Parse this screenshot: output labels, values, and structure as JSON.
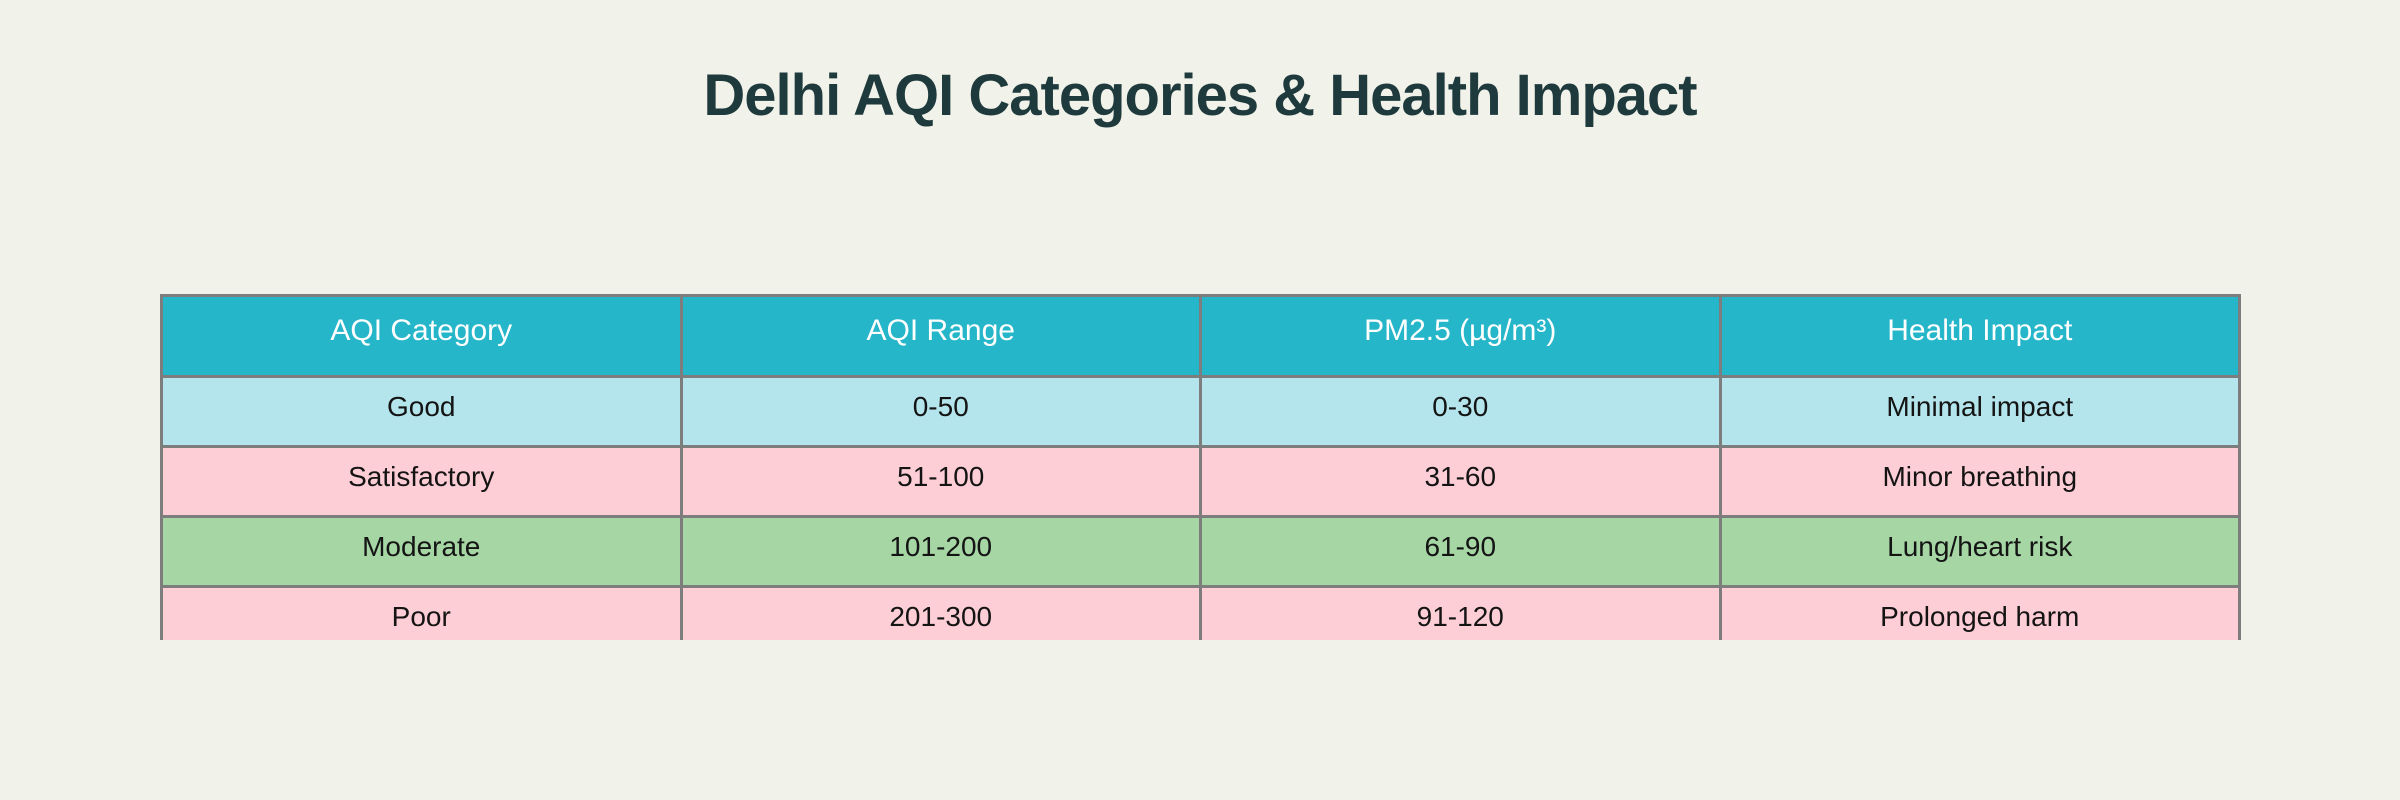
{
  "page": {
    "background": "#f1f2ea",
    "title": "Delhi AQI Categories & Health Impact",
    "title_color": "#1e3a3c"
  },
  "table": {
    "border_color": "#7d7d7d",
    "header": {
      "background": "#26b6c9",
      "text_color": "#ffffff",
      "columns": [
        "AQI Category",
        "AQI Range",
        "PM2.5 (µg/m³)",
        "Health Impact"
      ]
    },
    "rows": [
      {
        "category": "Good",
        "aqi_range": "0-50",
        "pm25": "0-30",
        "health_impact": "Minimal impact",
        "background": "#b4e4ec"
      },
      {
        "category": "Satisfactory",
        "aqi_range": "51-100",
        "pm25": "31-60",
        "health_impact": "Minor breathing",
        "background": "#fdced6"
      },
      {
        "category": "Moderate",
        "aqi_range": "101-200",
        "pm25": "61-90",
        "health_impact": "Lung/heart risk",
        "background": "#a5d6a4"
      },
      {
        "category": "Poor",
        "aqi_range": "201-300",
        "pm25": "91-120",
        "health_impact": "Prolonged harm",
        "background": "#fdced6"
      }
    ]
  },
  "chart_data": {
    "type": "table",
    "title": "Delhi AQI Categories & Health Impact",
    "columns": [
      "AQI Category",
      "AQI Range",
      "PM2.5 (µg/m³)",
      "Health Impact"
    ],
    "rows": [
      [
        "Good",
        "0-50",
        "0-30",
        "Minimal impact"
      ],
      [
        "Satisfactory",
        "51-100",
        "31-60",
        "Minor breathing"
      ],
      [
        "Moderate",
        "101-200",
        "61-90",
        "Lung/heart risk"
      ],
      [
        "Poor",
        "201-300",
        "91-120",
        "Prolonged harm"
      ]
    ],
    "header_color": "#26b6c9",
    "row_colors": [
      "#b4e4ec",
      "#fdced6",
      "#a5d6a4",
      "#fdced6"
    ],
    "layout_hints": {
      "title_position": "top-center",
      "last_row_clipped_at_bottom": true,
      "grid": true
    }
  }
}
